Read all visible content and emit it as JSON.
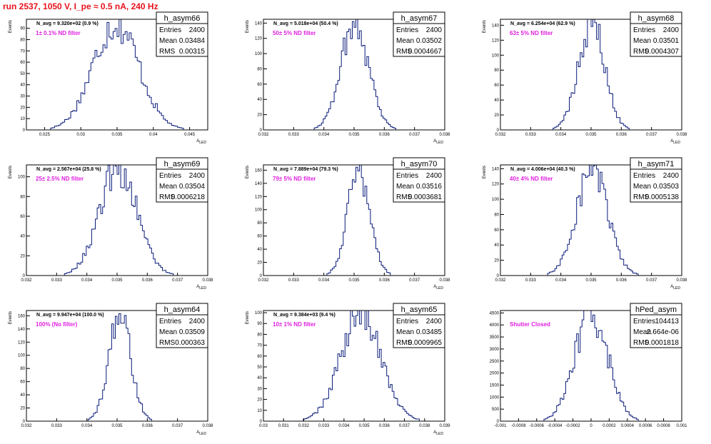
{
  "page": {
    "title": "run 2537,  1050 V, I_pe ≈ 0.5 nA, 240 Hz"
  },
  "colors": {
    "title": "#e8121b",
    "histogram_line": "#0b1c7a",
    "filter_label": "#e020e0",
    "axes": "#000000"
  },
  "chart_data": [
    {
      "type": "histogram",
      "name": "h_asym66",
      "title": "h_asym66",
      "entries": "2400",
      "mean": "0.03484",
      "rms": "0.00315",
      "navg": "N_avg = 9.320e+02 (0.9 %)",
      "filter_label": "1± 0.1% ND filter",
      "xlabel": "A_LED",
      "ylabel": "Events",
      "xlim": [
        0.0225,
        0.0475
      ],
      "ylim": [
        0,
        98
      ],
      "xticks": [
        0.025,
        0.03,
        0.035,
        0.04,
        0.045
      ],
      "xtick_labels": [
        "0.025",
        "0.03",
        "0.035",
        "0.04",
        "0.045"
      ],
      "yticks": [
        0,
        10,
        20,
        30,
        40,
        50,
        60,
        70,
        80,
        90
      ],
      "ytick_labels": [
        "0",
        "10",
        "20",
        "30",
        "40",
        "50",
        "60",
        "70",
        "80",
        "90"
      ],
      "peak": 95,
      "bins": 90
    },
    {
      "type": "histogram",
      "name": "h_asym67",
      "title": "h_asym67",
      "entries": "2400",
      "mean": "0.03502",
      "rms": "0.0004667",
      "navg": "N_avg = 5.018e+04 (50.4 %)",
      "filter_label": "50± 5% ND filter",
      "xlabel": "A_LED",
      "ylabel": "Events",
      "xlim": [
        0.032,
        0.038
      ],
      "ylim": [
        0,
        145
      ],
      "xticks": [
        0.032,
        0.033,
        0.034,
        0.035,
        0.036,
        0.037,
        0.038
      ],
      "xtick_labels": [
        "0.032",
        "0.033",
        "0.034",
        "0.035",
        "0.036",
        "0.037",
        "0.038"
      ],
      "yticks": [
        0,
        20,
        40,
        60,
        80,
        100,
        120,
        140
      ],
      "ytick_labels": [
        "0",
        "20",
        "40",
        "60",
        "80",
        "100",
        "120",
        "140"
      ],
      "peak": 140,
      "bins": 100
    },
    {
      "type": "histogram",
      "name": "h_asym68",
      "title": "h_asym68",
      "entries": "2400",
      "mean": "0.03501",
      "rms": "0.0004307",
      "navg": "N_avg = 6.254e+04 (62.9 %)",
      "filter_label": "63± 5% ND filter",
      "xlabel": "A_LED",
      "ylabel": "Events",
      "xlim": [
        0.032,
        0.038
      ],
      "ylim": [
        0,
        148
      ],
      "xticks": [
        0.032,
        0.033,
        0.034,
        0.035,
        0.036,
        0.037,
        0.038
      ],
      "xtick_labels": [
        "0.032",
        "0.033",
        "0.034",
        "0.035",
        "0.036",
        "0.037",
        "0.038"
      ],
      "yticks": [
        0,
        20,
        40,
        60,
        80,
        100,
        120,
        140
      ],
      "ytick_labels": [
        "0",
        "20",
        "40",
        "60",
        "80",
        "100",
        "120",
        "140"
      ],
      "peak": 145,
      "bins": 100
    },
    {
      "type": "histogram",
      "name": "h_asym69",
      "title": "h_asym69",
      "entries": "2400",
      "mean": "0.03504",
      "rms": "0.0006218",
      "navg": "N_avg = 2.567e+04 (25.8 %)",
      "filter_label": "25± 2.5% ND filter",
      "xlabel": "A_LED",
      "ylabel": "Events",
      "xlim": [
        0.032,
        0.038
      ],
      "ylim": [
        0,
        112
      ],
      "xticks": [
        0.032,
        0.033,
        0.034,
        0.035,
        0.036,
        0.037,
        0.038
      ],
      "xtick_labels": [
        "0.032",
        "0.033",
        "0.034",
        "0.035",
        "0.036",
        "0.037",
        "0.038"
      ],
      "yticks": [
        0,
        20,
        40,
        60,
        80,
        100
      ],
      "ytick_labels": [
        "0",
        "20",
        "40",
        "60",
        "80",
        "100"
      ],
      "peak": 108,
      "bins": 100
    },
    {
      "type": "histogram",
      "name": "h_asym70",
      "title": "h_asym70",
      "entries": "2400",
      "mean": "0.03516",
      "rms": "0.0003681",
      "navg": "N_avg = 7.889e+04 (79.3 %)",
      "filter_label": "79± 5% ND filter",
      "xlabel": "A_LED",
      "ylabel": "Events",
      "xlim": [
        0.032,
        0.038
      ],
      "ylim": [
        0,
        168
      ],
      "xticks": [
        0.032,
        0.033,
        0.034,
        0.035,
        0.036,
        0.037,
        0.038
      ],
      "xtick_labels": [
        "0.032",
        "0.033",
        "0.034",
        "0.035",
        "0.036",
        "0.037",
        "0.038"
      ],
      "yticks": [
        0,
        20,
        40,
        60,
        80,
        100,
        120,
        140,
        160
      ],
      "ytick_labels": [
        "0",
        "20",
        "40",
        "60",
        "80",
        "100",
        "120",
        "140",
        "160"
      ],
      "peak": 160,
      "bins": 100
    },
    {
      "type": "histogram",
      "name": "h_asym71",
      "title": "h_asym71",
      "entries": "2400",
      "mean": "0.03503",
      "rms": "0.0005138",
      "navg": "N_avg = 4.006e+04 (40.3 %)",
      "filter_label": "40± 4% ND filter",
      "xlabel": "A_LED",
      "ylabel": "Events",
      "xlim": [
        0.032,
        0.038
      ],
      "ylim": [
        0,
        145
      ],
      "xticks": [
        0.032,
        0.033,
        0.034,
        0.035,
        0.036,
        0.037,
        0.038
      ],
      "xtick_labels": [
        "0.032",
        "0.033",
        "0.034",
        "0.035",
        "0.036",
        "0.037",
        "0.038"
      ],
      "yticks": [
        0,
        20,
        40,
        60,
        80,
        100,
        120,
        140
      ],
      "ytick_labels": [
        "0",
        "20",
        "40",
        "60",
        "80",
        "100",
        "120",
        "140"
      ],
      "peak": 140,
      "bins": 100
    },
    {
      "type": "histogram",
      "name": "h_asym64",
      "title": "h_asym64",
      "entries": "2400",
      "mean": "0.03509",
      "rms": "0.000363",
      "navg": "N_avg = 9.947e+04 (100.0 %)",
      "filter_label": "100% (No filter)",
      "xlabel": "A_LED",
      "ylabel": "Events",
      "xlim": [
        0.032,
        0.038
      ],
      "ylim": [
        0,
        168
      ],
      "xticks": [
        0.032,
        0.033,
        0.034,
        0.035,
        0.036,
        0.037,
        0.038
      ],
      "xtick_labels": [
        "0.032",
        "0.033",
        "0.034",
        "0.035",
        "0.036",
        "0.037",
        "0.038"
      ],
      "yticks": [
        0,
        20,
        40,
        60,
        80,
        100,
        120,
        140,
        160
      ],
      "ytick_labels": [
        "0",
        "20",
        "40",
        "60",
        "80",
        "100",
        "120",
        "140",
        "160"
      ],
      "peak": 160,
      "bins": 100
    },
    {
      "type": "histogram",
      "name": "h_asym65",
      "title": "h_asym65",
      "entries": "2400",
      "mean": "0.03485",
      "rms": "0.0009965",
      "navg": "N_avg = 9.384e+03 (9.4 %)",
      "filter_label": "10± 1% ND filter",
      "xlabel": "A_LED",
      "ylabel": "Events",
      "xlim": [
        0.03,
        0.039
      ],
      "ylim": [
        0,
        102
      ],
      "xticks": [
        0.03,
        0.031,
        0.032,
        0.033,
        0.034,
        0.035,
        0.036,
        0.037,
        0.038,
        0.039
      ],
      "xtick_labels": [
        "0.03",
        "0.031",
        "0.032",
        "0.033",
        "0.034",
        "0.035",
        "0.036",
        "0.037",
        "0.038",
        "0.039"
      ],
      "yticks": [
        0,
        10,
        20,
        30,
        40,
        50,
        60,
        70,
        80,
        90,
        100
      ],
      "ytick_labels": [
        "0",
        "10",
        "20",
        "30",
        "40",
        "50",
        "60",
        "70",
        "80",
        "90",
        "100"
      ],
      "peak": 99,
      "bins": 100
    },
    {
      "type": "histogram",
      "name": "hPed_asym",
      "title": "hPed_asym",
      "entries": "104413",
      "mean": "2.664e-06",
      "rms": "0.0001818",
      "navg": "",
      "filter_label": "Shutter Closed",
      "xlabel": "",
      "ylabel": "",
      "xlim": [
        -0.001,
        0.001
      ],
      "ylim": [
        0,
        4600
      ],
      "xticks": [
        -0.001,
        -0.0008,
        -0.0006,
        -0.0004,
        -0.0002,
        0,
        0.0002,
        0.0004,
        0.0006,
        0.0008,
        0.001
      ],
      "xtick_labels": [
        "-0.001",
        "-0.0008",
        "-0.0006",
        "-0.0004",
        "-0.0002",
        "0",
        "0.0002",
        "0.0004",
        "0.0006",
        "0.0008",
        "0.001"
      ],
      "yticks": [
        0,
        500,
        1000,
        1500,
        2000,
        2500,
        3000,
        3500,
        4000,
        4500
      ],
      "ytick_labels": [
        "0",
        "500",
        "1000",
        "1500",
        "2000",
        "2500",
        "3000",
        "3500",
        "4000",
        "4500"
      ],
      "peak": 4500,
      "bins": 100
    }
  ]
}
